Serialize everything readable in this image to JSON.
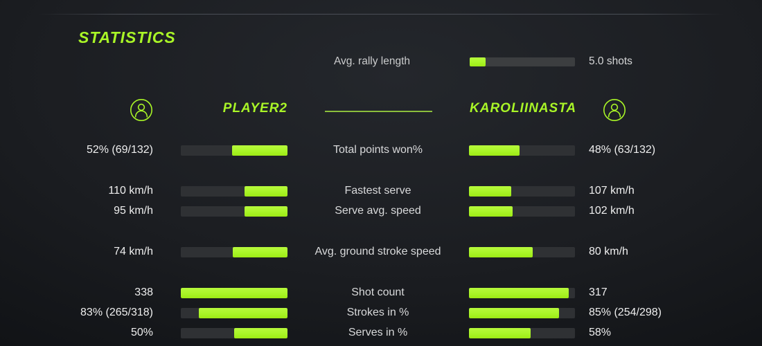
{
  "colors": {
    "accent": "#a9f527",
    "divider": "#8cbe3c",
    "track": "#2f3134"
  },
  "title": "STATISTICS",
  "avg_rally": {
    "label": "Avg. rally length",
    "value": "5.0 shots",
    "pct": 15
  },
  "players": {
    "left": "PLAYER2",
    "right": "KAROLIINASTA",
    "left_icon": "person-icon",
    "right_icon": "person-icon"
  },
  "rows": [
    {
      "label": "Total points won%",
      "left_value": "52% (69/132)",
      "left_pct": 52,
      "right_value": "48% (63/132)",
      "right_pct": 48
    },
    {
      "label": "Fastest serve",
      "left_value": "110 km/h",
      "left_pct": 40,
      "right_value": "107 km/h",
      "right_pct": 40
    },
    {
      "label": "Serve avg. speed",
      "left_value": "95 km/h",
      "left_pct": 40,
      "right_value": "102 km/h",
      "right_pct": 41
    },
    {
      "label": "Avg. ground stroke speed",
      "left_value": "74 km/h",
      "left_pct": 51,
      "right_value": "80 km/h",
      "right_pct": 60
    },
    {
      "label": "Shot count",
      "left_value": "338",
      "left_pct": 100,
      "right_value": "317",
      "right_pct": 94
    },
    {
      "label": "Strokes in %",
      "left_value": "83% (265/318)",
      "left_pct": 83,
      "right_value": "85% (254/298)",
      "right_pct": 85
    },
    {
      "label": "Serves in %",
      "left_value": "50%",
      "left_pct": 50,
      "right_value": "58%",
      "right_pct": 58
    }
  ]
}
